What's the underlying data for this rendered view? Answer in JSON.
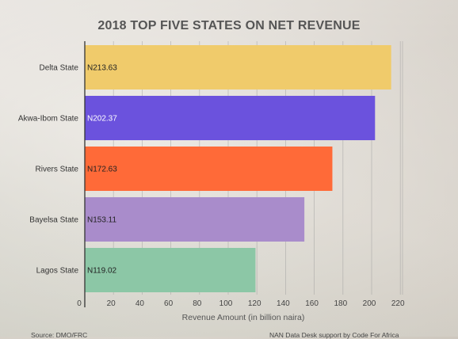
{
  "chart_data": {
    "type": "bar",
    "orientation": "horizontal",
    "title": "2018 TOP FIVE STATES ON NET REVENUE",
    "xlabel": "Revenue Amount (in billion naira)",
    "ylabel": "",
    "categories": [
      "Delta State",
      "Akwa-Ibom State",
      "Rivers State",
      "Bayelsa State",
      "Lagos State"
    ],
    "values": [
      213.63,
      202.37,
      172.63,
      153.11,
      119.02
    ],
    "data_labels": [
      "N213.63",
      "N202.37",
      "N172.63",
      "N153.11",
      "N119.02"
    ],
    "bar_colors": [
      "#f0cb6b",
      "#6b52dd",
      "#ff6a38",
      "#a98ccb",
      "#8cc7a6"
    ],
    "label_colors": [
      "#222222",
      "#ffffff",
      "#222222",
      "#222222",
      "#222222"
    ],
    "xlim": [
      0,
      220
    ],
    "xticks": [
      0,
      20,
      40,
      60,
      80,
      100,
      120,
      140,
      160,
      180,
      200,
      220
    ],
    "grid": true
  },
  "footer": {
    "source": "Source: DMO/FRC",
    "credit": "NAN Data Desk support by Code For Africa"
  }
}
